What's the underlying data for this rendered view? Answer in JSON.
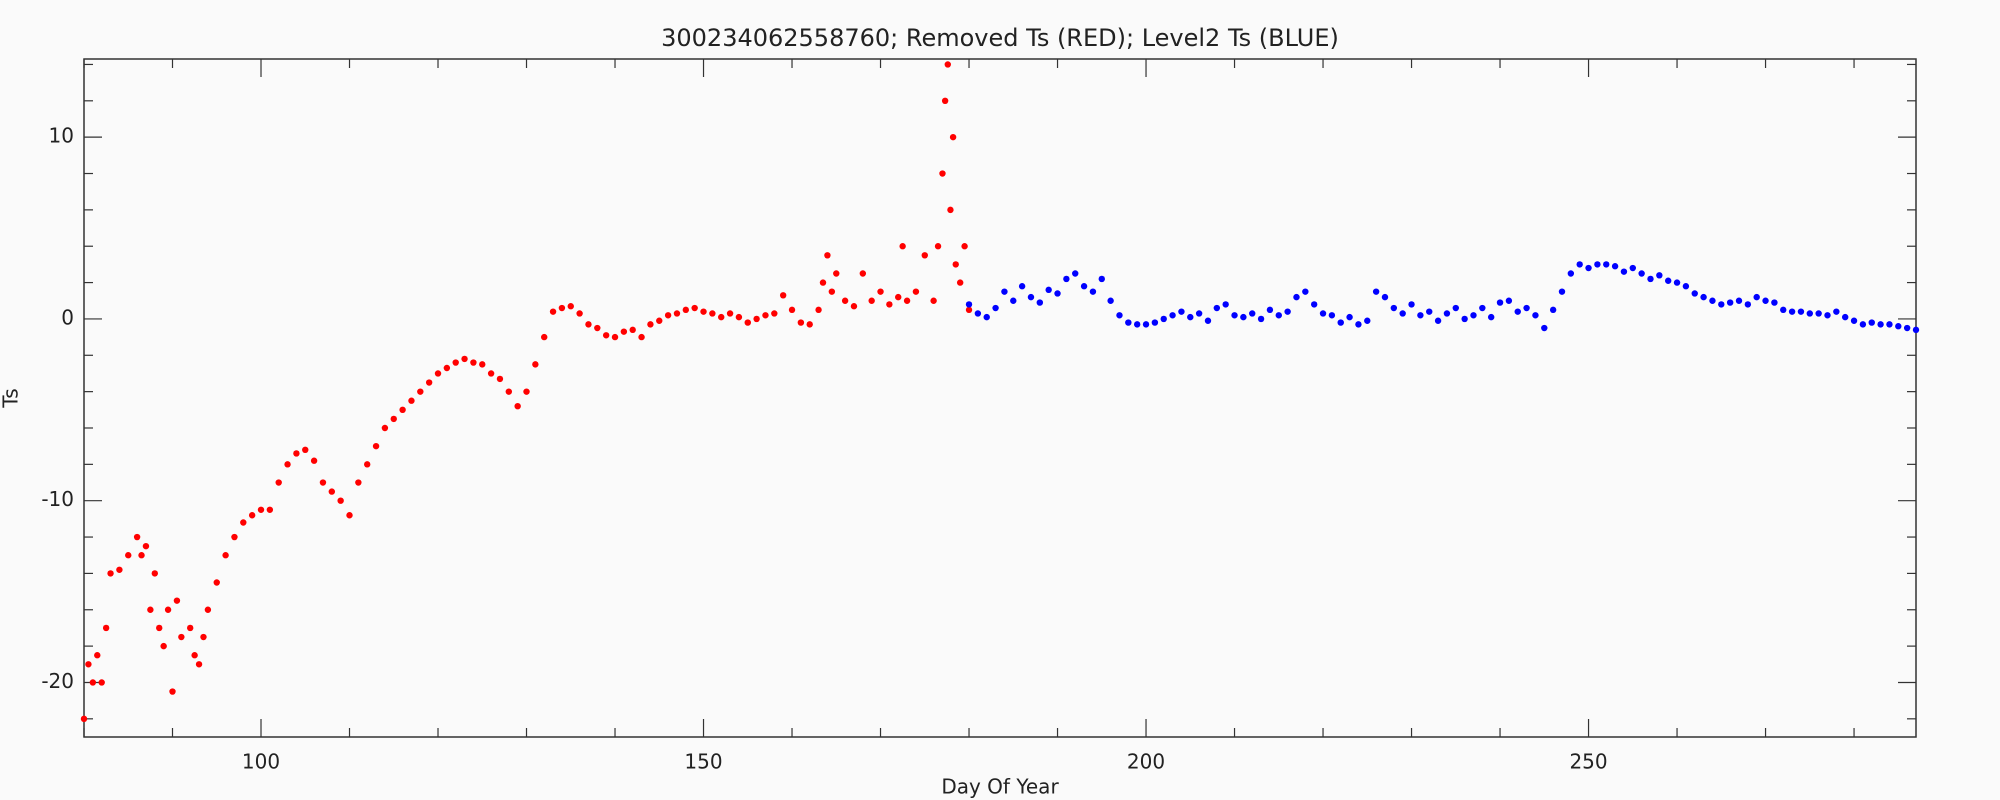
{
  "chart_data": {
    "type": "scatter",
    "title": "300234062558760; Removed Ts (RED); Level2 Ts (BLUE)",
    "xlabel": "Day Of Year",
    "ylabel": "Ts",
    "xlim": [
      80,
      287
    ],
    "ylim": [
      -23,
      14.3
    ],
    "xticks": [
      100,
      150,
      200,
      250
    ],
    "yticks": [
      -20,
      -10,
      0,
      10
    ],
    "xminorticks": [
      80,
      90,
      110,
      120,
      130,
      140,
      160,
      170,
      180,
      190,
      210,
      220,
      230,
      240,
      260,
      270,
      280
    ],
    "yminorticks": [
      -22,
      -18,
      -16,
      -14,
      -12,
      -8,
      -6,
      -4,
      -2,
      2,
      4,
      6,
      8,
      12,
      14
    ],
    "series": [
      {
        "color": "#ff0000",
        "x": [
          80,
          80.5,
          81,
          81.5,
          82,
          82.5,
          83,
          84,
          85,
          86,
          86.5,
          87,
          87.5,
          88,
          88.5,
          89,
          89.5,
          90,
          90.5,
          91,
          92,
          92.5,
          93,
          93.5,
          94,
          95,
          96,
          97,
          98,
          99,
          100,
          101,
          102,
          103,
          104,
          105,
          106,
          107,
          108,
          109,
          110,
          111,
          112,
          113,
          114,
          115,
          116,
          117,
          118,
          119,
          120,
          121,
          122,
          123,
          124,
          125,
          126,
          127,
          128,
          129,
          130,
          131,
          132,
          133,
          134,
          135,
          136,
          137,
          138,
          139,
          140,
          141,
          142,
          143,
          144,
          145,
          146,
          147,
          148,
          149,
          150,
          151,
          152,
          153,
          154,
          155,
          156,
          157,
          158,
          159,
          160,
          161,
          162,
          163,
          163.5,
          164,
          164.5,
          165,
          166,
          167,
          168,
          169,
          170,
          171,
          172,
          172.5,
          173,
          174,
          175,
          176,
          176.5,
          177,
          177.3,
          177.6,
          177.9,
          178.2,
          178.5,
          179,
          179.5,
          180
        ],
        "values": [
          -22,
          -19,
          -20,
          -18.5,
          -20,
          -17,
          -14,
          -13.8,
          -13,
          -12,
          -13,
          -12.5,
          -16,
          -14,
          -17,
          -18,
          -16,
          -20.5,
          -15.5,
          -17.5,
          -17,
          -18.5,
          -19,
          -17.5,
          -16,
          -14.5,
          -13,
          -12,
          -11.2,
          -10.8,
          -10.5,
          -10.5,
          -9,
          -8,
          -7.4,
          -7.2,
          -7.8,
          -9,
          -9.5,
          -10,
          -10.8,
          -9,
          -8,
          -7,
          -6,
          -5.5,
          -5,
          -4.5,
          -4,
          -3.5,
          -3,
          -2.7,
          -2.4,
          -2.2,
          -2.4,
          -2.5,
          -3,
          -3.3,
          -4,
          -4.8,
          -4,
          -2.5,
          -1,
          0.4,
          0.6,
          0.7,
          0.3,
          -0.3,
          -0.5,
          -0.9,
          -1,
          -0.7,
          -0.6,
          -1,
          -0.3,
          -0.1,
          0.2,
          0.3,
          0.5,
          0.6,
          0.4,
          0.3,
          0.1,
          0.3,
          0.1,
          -0.2,
          0,
          0.2,
          0.3,
          1.3,
          0.5,
          -0.2,
          -0.3,
          0.5,
          2,
          3.5,
          1.5,
          2.5,
          1,
          0.7,
          2.5,
          1,
          1.5,
          0.8,
          1.2,
          4,
          1,
          1.5,
          3.5,
          1,
          4,
          8,
          12,
          14,
          6,
          10,
          3,
          2,
          4,
          0.5
        ]
      },
      {
        "color": "#0000ff",
        "x": [
          180,
          181,
          182,
          183,
          184,
          185,
          186,
          187,
          188,
          189,
          190,
          191,
          192,
          193,
          194,
          195,
          196,
          197,
          198,
          199,
          200,
          201,
          202,
          203,
          204,
          205,
          206,
          207,
          208,
          209,
          210,
          211,
          212,
          213,
          214,
          215,
          216,
          217,
          218,
          219,
          220,
          221,
          222,
          223,
          224,
          225,
          226,
          227,
          228,
          229,
          230,
          231,
          232,
          233,
          234,
          235,
          236,
          237,
          238,
          239,
          240,
          241,
          242,
          243,
          244,
          245,
          246,
          247,
          248,
          249,
          250,
          251,
          252,
          253,
          254,
          255,
          256,
          257,
          258,
          259,
          260,
          261,
          262,
          263,
          264,
          265,
          266,
          267,
          268,
          269,
          270,
          271,
          272,
          273,
          274,
          275,
          276,
          277,
          278,
          279,
          280,
          281,
          282,
          283,
          284,
          285,
          286,
          287
        ],
        "values": [
          0.8,
          0.3,
          0.1,
          0.6,
          1.5,
          1,
          1.8,
          1.2,
          0.9,
          1.6,
          1.4,
          2.2,
          2.5,
          1.8,
          1.5,
          2.2,
          1,
          0.2,
          -0.2,
          -0.3,
          -0.3,
          -0.2,
          0,
          0.2,
          0.4,
          0.1,
          0.3,
          -0.1,
          0.6,
          0.8,
          0.2,
          0.1,
          0.3,
          0,
          0.5,
          0.2,
          0.4,
          1.2,
          1.5,
          0.8,
          0.3,
          0.2,
          -0.2,
          0.1,
          -0.3,
          -0.1,
          1.5,
          1.2,
          0.6,
          0.3,
          0.8,
          0.2,
          0.4,
          -0.1,
          0.3,
          0.6,
          0,
          0.2,
          0.6,
          0.1,
          0.9,
          1,
          0.4,
          0.6,
          0.2,
          -0.5,
          0.5,
          1.5,
          2.5,
          3,
          2.8,
          3,
          3,
          2.9,
          2.6,
          2.8,
          2.5,
          2.2,
          2.4,
          2.1,
          2,
          1.8,
          1.4,
          1.2,
          1,
          0.8,
          0.9,
          1,
          0.8,
          1.2,
          1,
          0.9,
          0.5,
          0.4,
          0.4,
          0.3,
          0.3,
          0.2,
          0.4,
          0.1,
          -0.1,
          -0.3,
          -0.2,
          -0.3,
          -0.3,
          -0.4,
          -0.5,
          -0.6
        ]
      }
    ]
  }
}
